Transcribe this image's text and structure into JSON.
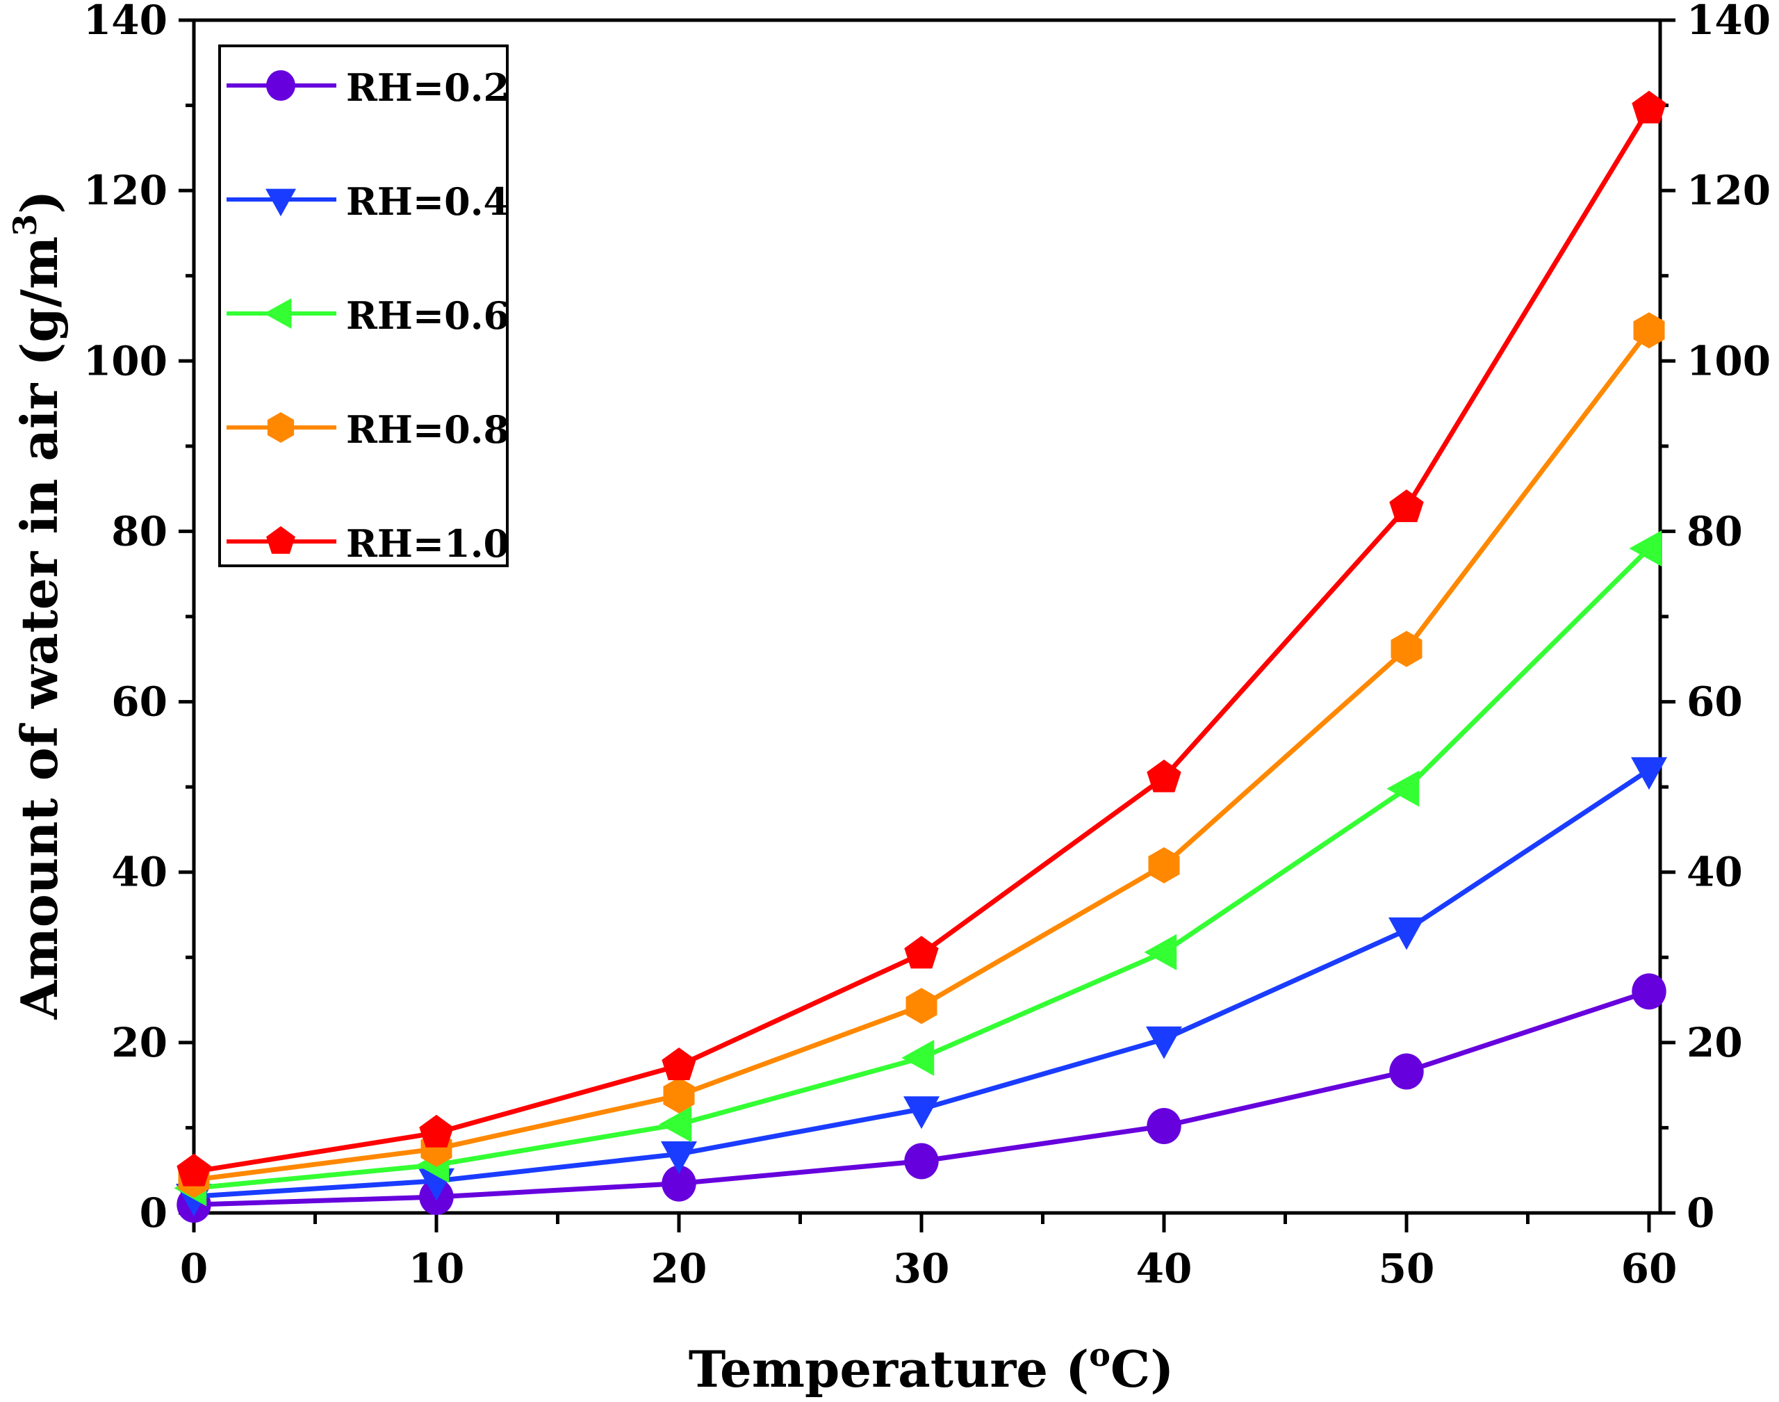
{
  "chart_data": {
    "type": "line",
    "title": "",
    "xlabel": "Temperature (oC)",
    "xlabel_main": "Temperature (",
    "xlabel_sup": "o",
    "xlabel_tail": "C)",
    "ylabel": "Amount of water in air (g/m3)",
    "ylabel_main": "Amount of water in air (g/m",
    "ylabel_sup": "3",
    "ylabel_tail": ")",
    "x": [
      0,
      10,
      20,
      30,
      40,
      50,
      60
    ],
    "xlim": [
      0,
      60.4
    ],
    "ylim": [
      0,
      140
    ],
    "xticks": [
      0,
      10,
      20,
      30,
      40,
      50,
      60
    ],
    "xtick_labels": [
      "0",
      "10",
      "20",
      "30",
      "40",
      "50",
      "60"
    ],
    "yticks": [
      0,
      20,
      40,
      60,
      80,
      100,
      120,
      140
    ],
    "ytick_labels": [
      "0",
      "20",
      "40",
      "60",
      "80",
      "100",
      "120",
      "140"
    ],
    "right_yticks_mirrored": true,
    "grid": false,
    "legend_position": "top-left",
    "series": [
      {
        "name": "RH=0.2",
        "color": "#6600dd",
        "marker": "circle",
        "values": [
          0.97,
          1.88,
          3.46,
          6.08,
          10.2,
          16.6,
          26.0
        ]
      },
      {
        "name": "RH=0.4",
        "color": "#1a3cff",
        "marker": "triangle-down",
        "values": [
          1.94,
          3.76,
          6.92,
          12.2,
          20.4,
          33.2,
          52.0
        ]
      },
      {
        "name": "RH=0.6",
        "color": "#33ff33",
        "marker": "triangle-left",
        "values": [
          2.91,
          5.64,
          10.4,
          18.2,
          30.6,
          49.8,
          78.0
        ]
      },
      {
        "name": "RH=0.8",
        "color": "#ff8800",
        "marker": "hexagon",
        "values": [
          3.88,
          7.52,
          13.8,
          24.3,
          40.8,
          66.2,
          103.6
        ]
      },
      {
        "name": "RH=1.0",
        "color": "#ff0000",
        "marker": "pentagon",
        "values": [
          4.85,
          9.4,
          17.3,
          30.4,
          51.1,
          82.8,
          129.6
        ]
      }
    ]
  }
}
